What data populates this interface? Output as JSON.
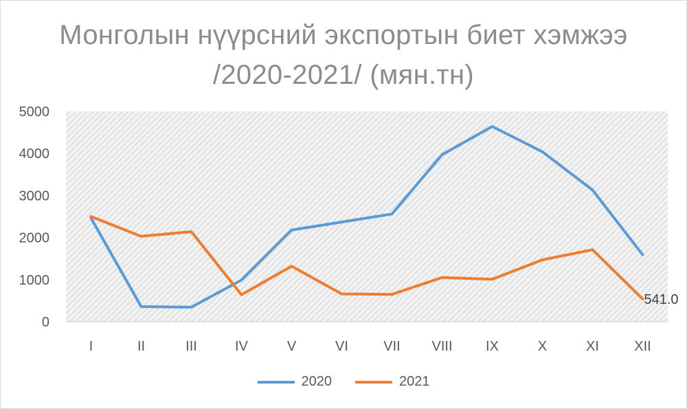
{
  "chart_data": {
    "type": "line",
    "title_line1": "Монголын нүүрсний экспортын биет хэмжээ",
    "title_line2": "/2020-2021/ (мян.тн)",
    "categories": [
      "I",
      "II",
      "III",
      "IV",
      "V",
      "VI",
      "VII",
      "VIII",
      "IX",
      "X",
      "XI",
      "XII"
    ],
    "ylim": [
      0,
      5000
    ],
    "yticks": [
      0,
      1000,
      2000,
      3000,
      4000,
      5000
    ],
    "grid": false,
    "plot_background": "hatched light gray",
    "legend_position": "bottom",
    "series": [
      {
        "name": "2020",
        "color": "#5b9bd5",
        "values": [
          2460,
          360,
          345,
          990,
          2180,
          2370,
          2560,
          3970,
          4640,
          4040,
          3130,
          1590
        ]
      },
      {
        "name": "2021",
        "color": "#ed7d31",
        "values": [
          2500,
          2030,
          2140,
          640,
          1320,
          660,
          650,
          1050,
          1010,
          1470,
          1710,
          541
        ]
      }
    ],
    "annotations": [
      {
        "series": "2021",
        "category": "XII",
        "text": "541.0"
      }
    ]
  }
}
